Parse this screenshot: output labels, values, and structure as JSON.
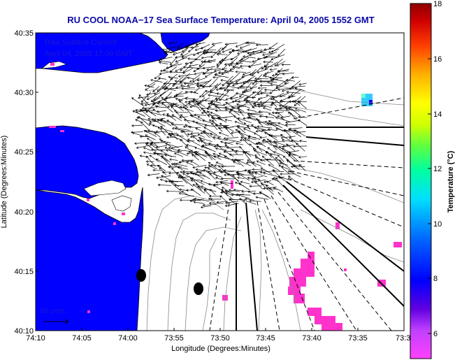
{
  "title": "RU COOL  NOAA−17  Sea Surface Temperature:  April 04, 2005 1552 GMT",
  "annotation_line1": "Raw Surface Current:",
  "annotation_line2": "April 04, 2005 17:00 GMT",
  "scale_label": "50 cm/s",
  "xlabel": "Longitude (Degrees:Minutes)",
  "ylabel": "Latitude (Degrees:Minutes)",
  "colorbar_label": "Temperature (°C)",
  "x_ticks": [
    "74:10",
    "74:05",
    "74:00",
    "73:55",
    "73:50",
    "73:45",
    "73:40",
    "73:35",
    "73:3"
  ],
  "y_ticks": [
    "40:35",
    "40:30",
    "40:25",
    "40:20",
    "40:15",
    "40:10"
  ],
  "colorbar_ticks": [
    "18",
    "16",
    "14",
    "12",
    "10",
    "8",
    "6"
  ],
  "colors": {
    "land": "#0000ff",
    "water": "#ffffff",
    "cold_patch": "#ff33cc",
    "warm_patch": "#33ccff",
    "title": "#0a0aa8"
  }
}
